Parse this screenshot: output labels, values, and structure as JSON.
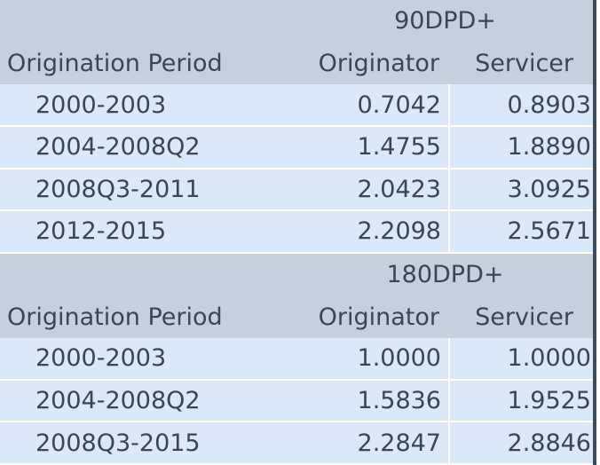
{
  "sections": [
    {
      "group": "90DPD+",
      "header": [
        "Origination Period",
        "Originator",
        "Servicer"
      ],
      "rows": [
        [
          "2000-2003",
          "0.7042",
          "0.8903"
        ],
        [
          "2004-2008Q2",
          "1.4755",
          "1.8890"
        ],
        [
          "2008Q3-2011",
          "2.0423",
          "3.0925"
        ],
        [
          "2012-2015",
          "2.2098",
          "2.5671"
        ]
      ]
    },
    {
      "group": "180DPD+",
      "header": [
        "Origination Period",
        "Originator",
        "Servicer"
      ],
      "rows": [
        [
          "2000-2003",
          "1.0000",
          "1.0000"
        ],
        [
          "2004-2008Q2",
          "1.5836",
          "1.9525"
        ],
        [
          "2008Q3-2015",
          "2.2847",
          "2.8846"
        ]
      ]
    }
  ]
}
